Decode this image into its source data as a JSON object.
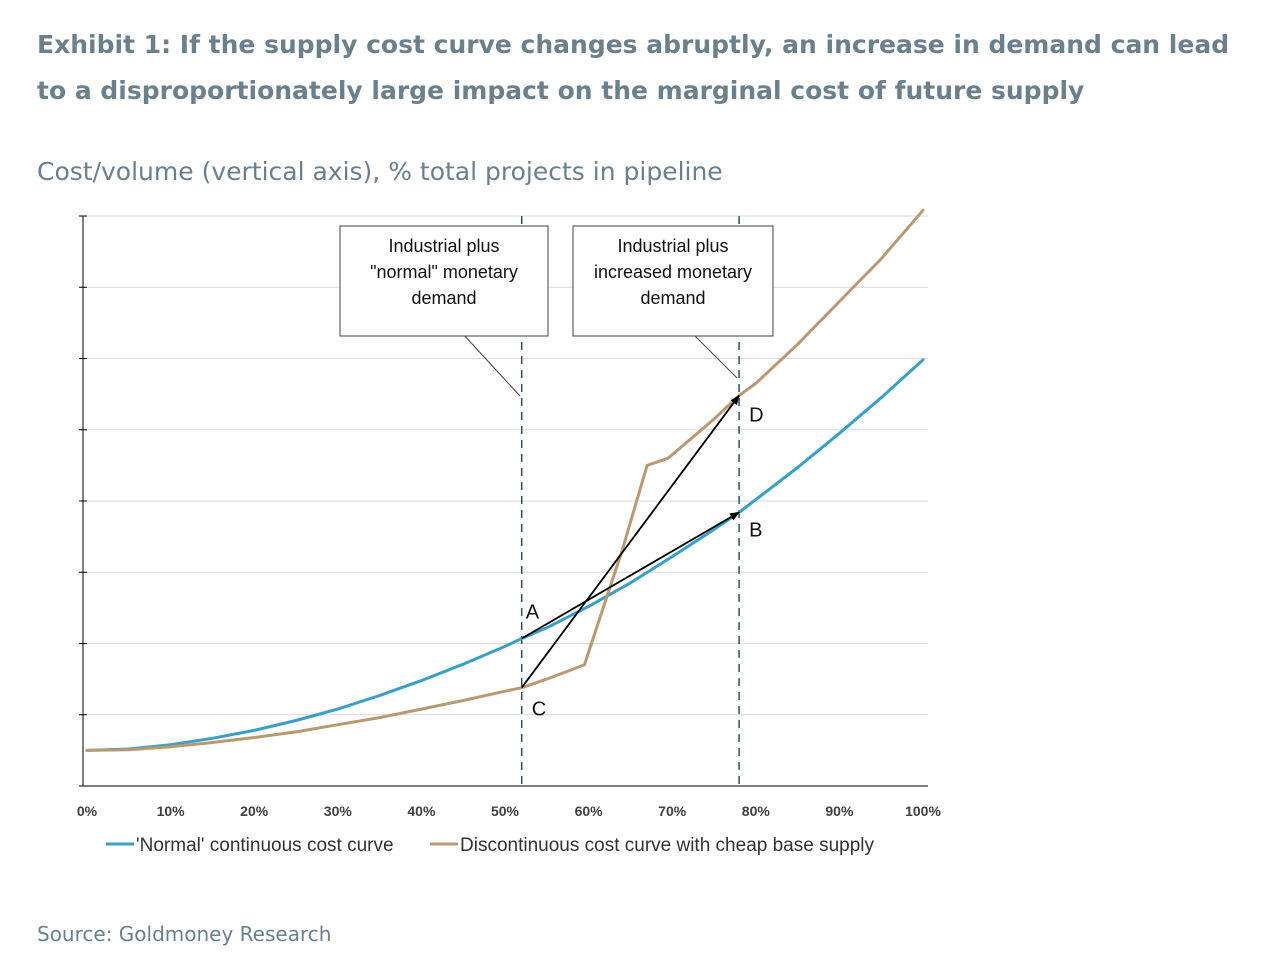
{
  "header": {
    "title": "Exhibit 1: If the supply cost curve changes abruptly, an increase in demand can lead to a disproportionately large impact on the marginal cost of future supply",
    "subtitle": "Cost/volume (vertical axis), % total projects in pipeline"
  },
  "footer": {
    "source": "Source: Goldmoney Research"
  },
  "colors": {
    "normal": "#3a9fc7",
    "discontinuous": "#b89a72",
    "text": "#6b7f8d",
    "grid": "#d9d9d9"
  },
  "chart_data": {
    "type": "line",
    "x_ticks": [
      "0%",
      "10%",
      "20%",
      "30%",
      "40%",
      "50%",
      "60%",
      "70%",
      "80%",
      "90%",
      "100%"
    ],
    "xlim": [
      0,
      100
    ],
    "ylim": [
      0,
      8
    ],
    "y_tick_count": 8,
    "grid": true,
    "legend_position": "bottom",
    "series": [
      {
        "name": "'Normal' continuous cost curve",
        "color": "#3a9fc7",
        "x": [
          0,
          5,
          10,
          15,
          20,
          25,
          30,
          35,
          40,
          45,
          50,
          52,
          55,
          60,
          65,
          70,
          75,
          78,
          80,
          85,
          90,
          95,
          100
        ],
        "y": [
          0.5,
          0.52,
          0.58,
          0.67,
          0.78,
          0.92,
          1.08,
          1.27,
          1.48,
          1.71,
          1.96,
          2.07,
          2.22,
          2.52,
          2.85,
          3.22,
          3.6,
          3.84,
          4.02,
          4.47,
          4.95,
          5.45,
          5.98
        ]
      },
      {
        "name": "Discontinuous cost curve with cheap base supply",
        "color": "#b89a72",
        "x": [
          0,
          5,
          10,
          15,
          20,
          25,
          30,
          35,
          40,
          45,
          50,
          52,
          55,
          59.5,
          64,
          67,
          69.5,
          75,
          78,
          80,
          85,
          90,
          95,
          100
        ],
        "y": [
          0.5,
          0.51,
          0.55,
          0.61,
          0.68,
          0.76,
          0.86,
          0.96,
          1.08,
          1.2,
          1.33,
          1.38,
          1.5,
          1.7,
          3.3,
          4.5,
          4.6,
          5.15,
          5.48,
          5.65,
          6.2,
          6.8,
          7.4,
          8.08
        ]
      }
    ],
    "demand_lines": [
      {
        "x": 52,
        "label": "Industrial plus \"normal\" monetary demand"
      },
      {
        "x": 78,
        "label": "Industrial plus increased monetary demand"
      }
    ],
    "points": [
      {
        "label": "A",
        "x": 52,
        "y": 2.07
      },
      {
        "label": "B",
        "x": 78,
        "y": 3.84
      },
      {
        "label": "C",
        "x": 52,
        "y": 1.38
      },
      {
        "label": "D",
        "x": 78,
        "y": 5.48
      }
    ],
    "arrows": [
      {
        "from": "A",
        "to": "B"
      },
      {
        "from": "C",
        "to": "D"
      }
    ]
  }
}
